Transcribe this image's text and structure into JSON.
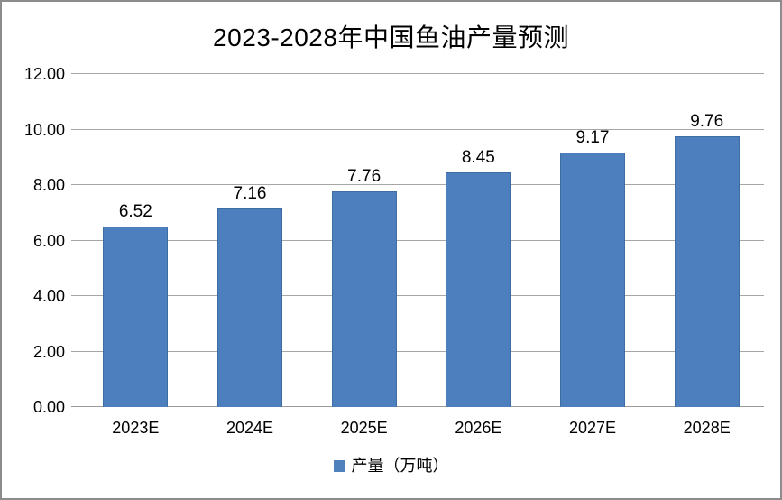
{
  "chart_data": {
    "type": "bar",
    "title": "2023-2028年中国鱼油产量预测",
    "categories": [
      "2023E",
      "2024E",
      "2025E",
      "2026E",
      "2027E",
      "2028E"
    ],
    "series": [
      {
        "name": "产量（万吨）",
        "values": [
          6.52,
          7.16,
          7.76,
          8.45,
          9.17,
          9.76
        ],
        "value_labels": [
          "6.52",
          "7.16",
          "7.76",
          "8.45",
          "9.17",
          "9.76"
        ]
      }
    ],
    "xlabel": "",
    "ylabel": "",
    "ylim": [
      0,
      12
    ],
    "ytick_step": 2,
    "ytick_labels": [
      "0.00",
      "2.00",
      "4.00",
      "6.00",
      "8.00",
      "10.00",
      "12.00"
    ],
    "grid": true,
    "legend_position": "bottom",
    "colors": {
      "bar_fill": "#4d7ebd",
      "bar_border": "#3f6ca3",
      "gridline": "#a6a6a6",
      "text": "#000000",
      "frame_border": "#8c8c8c",
      "background": "#ffffff"
    }
  }
}
